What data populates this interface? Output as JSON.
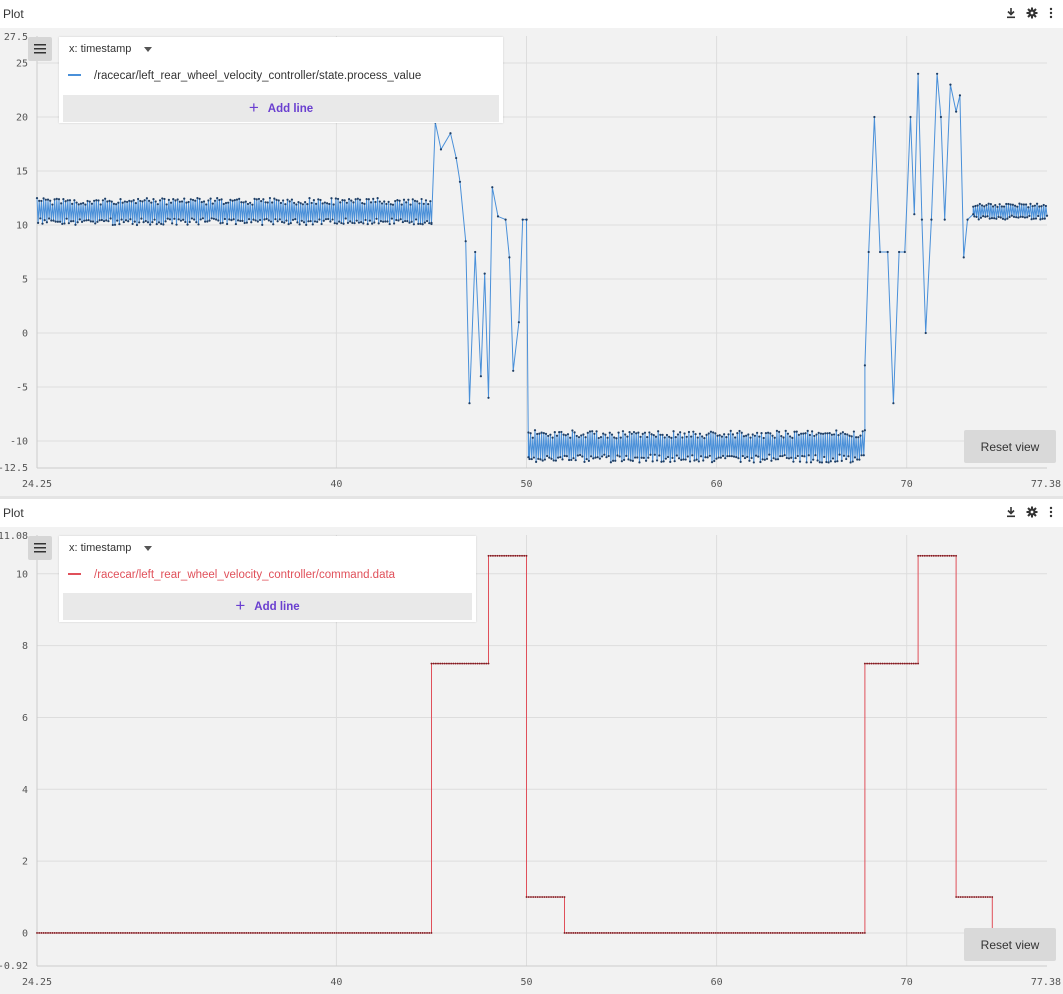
{
  "colors": {
    "accent": "#6a3fd0",
    "series_blue": "#4a90d9",
    "series_blue_marker": "#1f3f66",
    "series_red": "#e0505a",
    "series_red_marker": "#7a1d22"
  },
  "icons": {
    "download": "download-icon",
    "settings": "gear-icon",
    "more": "more-vertical-icon",
    "menu": "hamburger-menu-icon",
    "add": "plus-icon",
    "dropdown": "caret-down-icon"
  },
  "plots": [
    {
      "title": "Plot",
      "x_selector": "x: timestamp",
      "legend_series": "/racecar/left_rear_wheel_velocity_controller/state.process_value",
      "add_line_label": "Add line",
      "reset_label": "Reset view",
      "y_tick_labels": [
        "27.5",
        "25",
        "20",
        "15",
        "10",
        "5",
        "0",
        "-5",
        "-10",
        "-12.5"
      ],
      "x_tick_labels": [
        "24.25",
        "40",
        "50",
        "60",
        "70",
        "77.38"
      ]
    },
    {
      "title": "Plot",
      "x_selector": "x: timestamp",
      "legend_series": "/racecar/left_rear_wheel_velocity_controller/command.data",
      "add_line_label": "Add line",
      "reset_label": "Reset view",
      "y_tick_labels": [
        "11.08",
        "10",
        "8",
        "6",
        "4",
        "2",
        "0",
        "-0.92"
      ],
      "x_tick_labels": [
        "24.25",
        "40",
        "50",
        "60",
        "70",
        "77.38"
      ]
    }
  ],
  "chart_data": [
    {
      "type": "line",
      "series": [
        {
          "name": "/racecar/left_rear_wheel_velocity_controller/state.process_value",
          "segments": [
            {
              "x": [
                24.25,
                45.0
              ],
              "y_min": 10.0,
              "y_max": 12.5,
              "pattern": "oscillating"
            },
            {
              "x": [
                45.0,
                45.2,
                45.5,
                46.0,
                46.3,
                46.5,
                46.8,
                47.0,
                47.3,
                47.6,
                47.8,
                48.0,
                48.2,
                48.5,
                48.9,
                49.1,
                49.3,
                49.6,
                49.8,
                50.0
              ],
              "y": [
                10.2,
                19.5,
                17.0,
                18.5,
                16.2,
                14.0,
                8.5,
                -6.5,
                7.5,
                -4.0,
                5.5,
                -6.0,
                13.5,
                10.8,
                10.5,
                7.0,
                -3.5,
                1.0,
                10.5,
                10.5
              ]
            },
            {
              "x": [
                50.0,
                50.1
              ],
              "y": [
                10.5,
                -11.5
              ]
            },
            {
              "x": [
                50.1,
                67.8
              ],
              "y_min": -12.0,
              "y_max": -9.0,
              "pattern": "oscillating"
            },
            {
              "x": [
                67.8,
                68.0,
                68.3,
                68.6,
                69.0,
                69.3,
                69.6,
                69.9,
                70.2,
                70.4,
                70.6,
                70.8,
                71.0,
                71.3,
                71.6,
                71.8,
                72.0,
                72.3,
                72.6,
                72.8,
                73.0,
                73.2,
                73.5
              ],
              "y": [
                -3.0,
                7.5,
                20.0,
                7.5,
                7.5,
                -6.5,
                7.5,
                7.5,
                20.0,
                11.0,
                24.0,
                10.5,
                0.0,
                10.5,
                24.0,
                20.0,
                10.5,
                23.0,
                20.5,
                22.0,
                7.0,
                10.5,
                11.0
              ]
            },
            {
              "x": [
                73.5,
                77.38
              ],
              "y_min": 10.5,
              "y_max": 12.0,
              "pattern": "oscillating"
            }
          ]
        }
      ],
      "x_range": [
        24.25,
        77.38
      ],
      "y_range": [
        -12.5,
        27.5
      ],
      "grid": true,
      "legend_placement": "top-left"
    },
    {
      "type": "line",
      "series": [
        {
          "name": "/racecar/left_rear_wheel_velocity_controller/command.data",
          "x": [
            24.25,
            45.0,
            45.0,
            48.0,
            48.0,
            50.0,
            50.0,
            52.0,
            52.0,
            67.8,
            67.8,
            70.6,
            70.6,
            72.6,
            72.6,
            74.5,
            74.5,
            77.38
          ],
          "y": [
            0,
            0,
            7.5,
            7.5,
            10.5,
            10.5,
            1.0,
            1.0,
            0,
            0,
            7.5,
            7.5,
            10.5,
            10.5,
            1.0,
            1.0,
            0,
            0
          ]
        }
      ],
      "x_range": [
        24.25,
        77.38
      ],
      "y_range": [
        -0.92,
        11.08
      ],
      "grid": true,
      "legend_placement": "top-left"
    }
  ]
}
